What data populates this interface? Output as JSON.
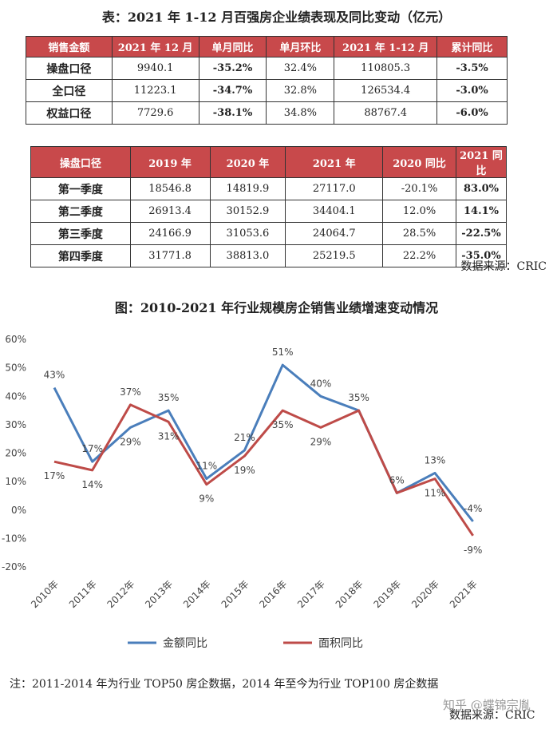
{
  "table1": {
    "title": "表：2021 年 1-12 月百强房企业绩表现及同比变动（亿元）",
    "headers": [
      "销售金额",
      "2021 年 12 月",
      "单月同比",
      "单月环比",
      "2021 年 1-12 月",
      "累计同比"
    ],
    "rows": [
      [
        "操盘口径",
        "9940.1",
        "-35.2%",
        "32.4%",
        "110805.3",
        "-3.5%"
      ],
      [
        "全口径",
        "11223.1",
        "-34.7%",
        "32.8%",
        "126534.4",
        "-3.0%"
      ],
      [
        "权益口径",
        "7729.6",
        "-38.1%",
        "34.8%",
        "88767.4",
        "-6.0%"
      ]
    ]
  },
  "table2": {
    "headers": [
      "操盘口径",
      "2019 年",
      "2020 年",
      "2021 年",
      "2020 同比",
      "2021 同比"
    ],
    "rows": [
      [
        "第一季度",
        "18546.8",
        "14819.9",
        "27117.0",
        "-20.1%",
        "83.0%"
      ],
      [
        "第二季度",
        "26913.4",
        "30152.9",
        "34404.1",
        "12.0%",
        "14.1%"
      ],
      [
        "第三季度",
        "24166.9",
        "31053.6",
        "24064.7",
        "28.5%",
        "-22.5%"
      ],
      [
        "第四季度",
        "31771.8",
        "38813.0",
        "25219.5",
        "22.2%",
        "-35.0%"
      ]
    ],
    "source": "数据来源：CRIC"
  },
  "chart_data": {
    "type": "line",
    "title": "图：2010-2021 年行业规模房企销售业绩增速变动情况",
    "categories": [
      "2010年",
      "2011年",
      "2012年",
      "2013年",
      "2014年",
      "2015年",
      "2016年",
      "2017年",
      "2018年",
      "2019年",
      "2020年",
      "2021年"
    ],
    "series": [
      {
        "name": "金额同比",
        "color": "#4a7ebb",
        "values": [
          43,
          17,
          29,
          35,
          11,
          21,
          51,
          40,
          35,
          6,
          13,
          -4
        ],
        "labels": [
          "43%",
          "17%",
          "29%",
          "35%",
          "11%",
          "21%",
          "51%",
          "40%",
          "35%",
          "",
          "13%",
          "-4%"
        ]
      },
      {
        "name": "面积同比",
        "color": "#be4b48",
        "values": [
          17,
          14,
          37,
          31,
          9,
          19,
          35,
          29,
          35,
          6,
          11,
          -9
        ],
        "labels": [
          "17%",
          "14%",
          "37%",
          "31%",
          "9%",
          "19%",
          "35%",
          "29%",
          "",
          "6%",
          "11%",
          "-9%"
        ]
      }
    ],
    "yticks": [
      "60%",
      "50%",
      "40%",
      "30%",
      "20%",
      "10%",
      "0%",
      "-10%",
      "-20%"
    ],
    "ylim": [
      -20,
      60
    ],
    "legend_position": "bottom"
  },
  "chart_source": "数据来源：CRIC",
  "note": "注：2011-2014 年为行业 TOP50 房企数据，2014 年至今为行业 TOP100 房企数据",
  "watermark": "知乎 @蝶锦宗胤"
}
